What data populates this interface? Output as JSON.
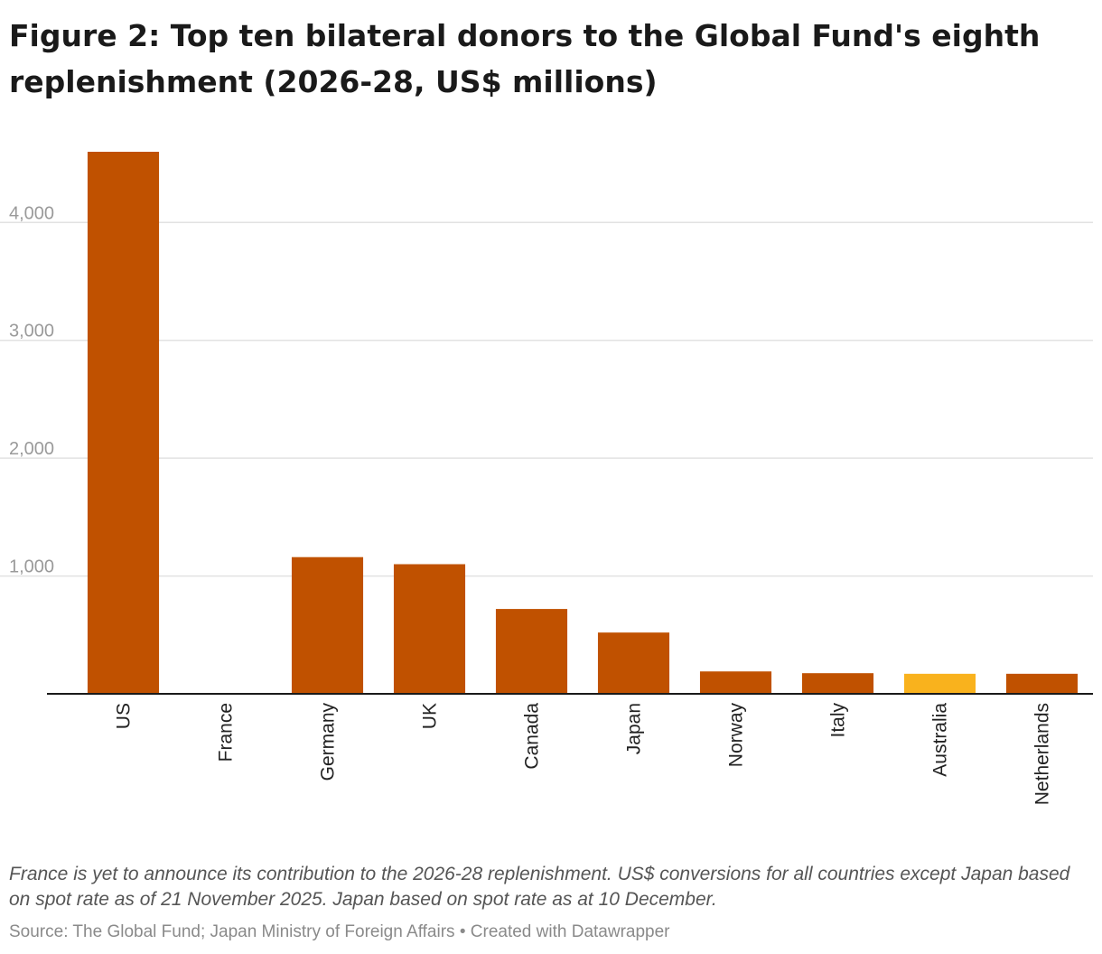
{
  "chart_data": {
    "type": "bar",
    "title": "Figure 2: Top ten bilateral donors to the Global Fund's eighth replenishment (2026-28, US$ millions)",
    "categories": [
      "US",
      "France",
      "Germany",
      "UK",
      "Canada",
      "Japan",
      "Norway",
      "Italy",
      "Australia",
      "Netherlands"
    ],
    "values": [
      4600,
      null,
      1160,
      1100,
      720,
      520,
      190,
      175,
      170,
      170
    ],
    "highlight_category": "Australia",
    "colors": {
      "bar": "#c05100",
      "highlight": "#f9b21d",
      "gridline": "#e2e2e2",
      "axis": "#1a1a1a"
    },
    "yticks": [
      1000,
      2000,
      3000,
      4000
    ],
    "ytick_labels": [
      "1,000",
      "2,000",
      "3,000",
      "4,000"
    ],
    "ylim": [
      0,
      4600
    ],
    "grid": true,
    "xlabel": "",
    "ylabel": ""
  },
  "notes": "France is yet to announce its contribution to the 2026-28 replenishment. US$ conversions for all countries except Japan based on spot rate as of 21 November 2025. Japan based on spot rate as at 10 December.",
  "footer": {
    "source_label": "Source: ",
    "source": "The Global Fund; Japan Ministry of Foreign Affairs",
    "separator": " • ",
    "credit": "Created with Datawrapper"
  }
}
